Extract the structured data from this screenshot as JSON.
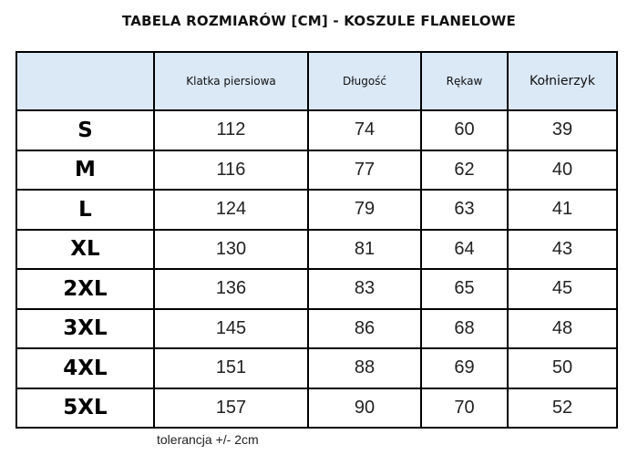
{
  "title": "TABELA ROZMIARÓW [CM] - KOSZULE FLANELOWE",
  "headers": [
    "",
    "Klatka piersiowa",
    "Długość",
    "Rękaw",
    "Kołnierzyk"
  ],
  "rows": [
    [
      "S",
      "112",
      "74",
      "60",
      "39"
    ],
    [
      "M",
      "116",
      "77",
      "62",
      "40"
    ],
    [
      "L",
      "124",
      "79",
      "63",
      "41"
    ],
    [
      "XL",
      "130",
      "81",
      "64",
      "43"
    ],
    [
      "2XL",
      "136",
      "83",
      "65",
      "45"
    ],
    [
      "3XL",
      "145",
      "86",
      "68",
      "48"
    ],
    [
      "4XL",
      "151",
      "88",
      "69",
      "50"
    ],
    [
      "5XL",
      "157",
      "90",
      "70",
      "52"
    ]
  ],
  "footer": "tolerancja +/- 2cm",
  "colors": {
    "header_bg": "#dbe8f6"
  }
}
